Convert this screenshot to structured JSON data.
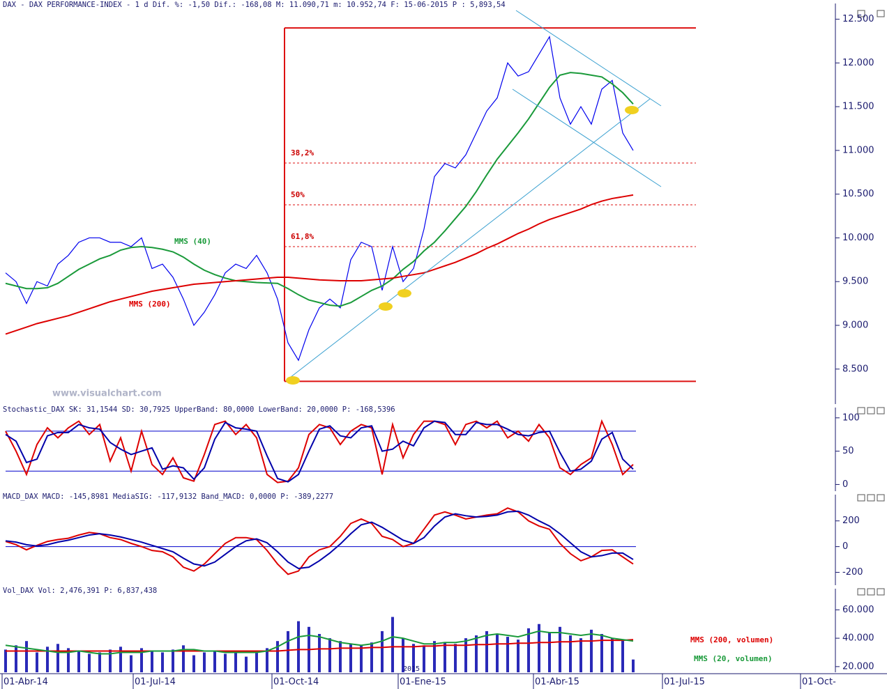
{
  "chart_data": [
    {
      "type": "line",
      "title": "DAX - DAX PERFORMANCE-INDEX -  1 d Dif. %: -1,50 Dif.: -168,08 M: 11.090,71 m: 10.952,74 F: 15-06-2015 P : 5,893,54",
      "watermark": "www.visualchart.com",
      "ylim": [
        8100,
        12600
      ],
      "yticks": [
        {
          "value": 12500,
          "label": "12.500"
        },
        {
          "value": 12000,
          "label": "12.000"
        },
        {
          "value": 11500,
          "label": "11.500"
        },
        {
          "value": 11000,
          "label": "11.000"
        },
        {
          "value": 10500,
          "label": "10.500"
        },
        {
          "value": 10000,
          "label": "10.000"
        },
        {
          "value": 9500,
          "label": "9.500"
        },
        {
          "value": 9000,
          "label": "9.000"
        },
        {
          "value": 8500,
          "label": "8.500"
        }
      ],
      "series": [
        {
          "color": "#0000ee",
          "values": [
            9600,
            9500,
            9250,
            9500,
            9450,
            9700,
            9800,
            9950,
            10000,
            10000,
            9950,
            9950,
            9900,
            10000,
            9650,
            9700,
            9550,
            9300,
            9000,
            9150,
            9350,
            9600,
            9700,
            9650,
            9800,
            9600,
            9300,
            8800,
            8600,
            8950,
            9200,
            9300,
            9200,
            9750,
            9950,
            9900,
            9400,
            9900,
            9500,
            9650,
            10100,
            10700,
            10850,
            10800,
            10950,
            11200,
            11450,
            11600,
            12000,
            11850,
            11900,
            12100,
            12300,
            11600,
            11300,
            11500,
            11300,
            11700,
            11800,
            11200,
            11000
          ]
        },
        {
          "name": "MMS (40)",
          "color": "#1a9a3a",
          "values": [
            9480,
            9450,
            9420,
            9420,
            9430,
            9480,
            9560,
            9640,
            9700,
            9760,
            9800,
            9860,
            9890,
            9900,
            9890,
            9870,
            9840,
            9780,
            9700,
            9630,
            9580,
            9540,
            9510,
            9500,
            9490,
            9485,
            9480,
            9420,
            9350,
            9290,
            9260,
            9230,
            9220,
            9260,
            9330,
            9400,
            9450,
            9530,
            9640,
            9730,
            9850,
            9950,
            10080,
            10220,
            10360,
            10530,
            10720,
            10900,
            11050,
            11200,
            11360,
            11540,
            11720,
            11860,
            11890,
            11880,
            11860,
            11840,
            11760,
            11660,
            11530
          ]
        },
        {
          "name": "MMS (200)",
          "color": "#dd0000",
          "values": [
            8900,
            8940,
            8980,
            9020,
            9050,
            9080,
            9110,
            9150,
            9190,
            9230,
            9270,
            9300,
            9330,
            9360,
            9390,
            9410,
            9430,
            9450,
            9470,
            9480,
            9490,
            9500,
            9510,
            9520,
            9530,
            9540,
            9550,
            9550,
            9540,
            9530,
            9520,
            9515,
            9510,
            9510,
            9510,
            9520,
            9530,
            9540,
            9560,
            9580,
            9600,
            9640,
            9680,
            9720,
            9770,
            9820,
            9880,
            9930,
            9990,
            10050,
            10100,
            10160,
            10210,
            10250,
            10290,
            10330,
            10380,
            10420,
            10450,
            10470,
            10490
          ]
        }
      ],
      "box": {
        "top": 12400,
        "bottom": 8360
      },
      "levels": [
        {
          "label": "38,2%",
          "value": 10856
        },
        {
          "label": "50%",
          "value": 10378
        },
        {
          "label": "61,8%",
          "value": 9900
        }
      ]
    },
    {
      "type": "line",
      "title": "Stochastic_DAX SK: 31,1544 SD: 30,7925 UpperBand: 80,0000 LowerBand: 20,0000 P: -168,5396",
      "ylim": [
        -10,
        105
      ],
      "yticks": [
        100,
        50,
        0
      ],
      "bands": [
        80,
        20
      ],
      "series": [
        {
          "color": "#dd0000",
          "values": [
            80,
            50,
            15,
            60,
            85,
            70,
            85,
            95,
            75,
            90,
            35,
            70,
            20,
            80,
            30,
            15,
            40,
            10,
            5,
            45,
            90,
            95,
            75,
            90,
            70,
            15,
            3,
            5,
            25,
            75,
            90,
            85,
            60,
            80,
            90,
            85,
            15,
            90,
            40,
            75,
            95,
            95,
            90,
            60,
            90,
            95,
            85,
            95,
            70,
            80,
            65,
            90,
            70,
            25,
            15,
            30,
            40,
            95,
            60,
            15,
            30
          ]
        },
        {
          "color": "#0000aa",
          "values": [
            75,
            65,
            33,
            38,
            73,
            78,
            78,
            90,
            85,
            83,
            63,
            53,
            45,
            50,
            55,
            23,
            28,
            25,
            8,
            25,
            68,
            93,
            85,
            83,
            80,
            43,
            9,
            4,
            15,
            50,
            83,
            88,
            73,
            70,
            85,
            88,
            50,
            53,
            65,
            58,
            85,
            95,
            93,
            75,
            75,
            93,
            90,
            90,
            83,
            75,
            73,
            78,
            80,
            48,
            20,
            23,
            35,
            68,
            78,
            38,
            23
          ]
        }
      ]
    },
    {
      "type": "line",
      "title": "MACD_DAX MACD: -145,8981 MediaSIG: -117,9132 Band_MACD: 0,0000 P: -389,2277",
      "ylim": [
        -300,
        350
      ],
      "yticks": [
        200,
        0,
        -200
      ],
      "bands": [
        0
      ],
      "series": [
        {
          "color": "#dd0000",
          "values": [
            40,
            15,
            -25,
            10,
            40,
            55,
            65,
            90,
            110,
            100,
            70,
            55,
            25,
            0,
            -30,
            -40,
            -80,
            -160,
            -190,
            -135,
            -55,
            25,
            70,
            70,
            55,
            -30,
            -135,
            -215,
            -190,
            -80,
            -25,
            0,
            80,
            180,
            215,
            180,
            80,
            55,
            0,
            25,
            135,
            245,
            270,
            245,
            215,
            230,
            245,
            255,
            300,
            270,
            200,
            160,
            135,
            25,
            -55,
            -110,
            -80,
            -30,
            -25,
            -80,
            -135
          ]
        },
        {
          "color": "#0000aa",
          "values": [
            45,
            35,
            15,
            5,
            15,
            35,
            50,
            70,
            90,
            100,
            90,
            75,
            55,
            35,
            10,
            -15,
            -40,
            -90,
            -135,
            -150,
            -120,
            -60,
            0,
            45,
            60,
            30,
            -40,
            -120,
            -170,
            -160,
            -110,
            -50,
            20,
            100,
            170,
            190,
            150,
            100,
            50,
            25,
            70,
            160,
            230,
            255,
            240,
            230,
            235,
            245,
            270,
            275,
            245,
            200,
            160,
            100,
            30,
            -40,
            -80,
            -70,
            -50,
            -50,
            -100
          ]
        }
      ]
    },
    {
      "type": "bar",
      "title": "Vol_DAX Vol: 2,476,391 P: 6,837,438",
      "ylim": [
        16000,
        70000
      ],
      "yticks": [
        {
          "value": 60000,
          "label": "60.000"
        },
        {
          "value": 40000,
          "label": "40.000"
        },
        {
          "value": 20000,
          "label": "20.000"
        }
      ],
      "values": [
        32000,
        35000,
        38000,
        30000,
        34000,
        36000,
        33000,
        31000,
        29000,
        30000,
        32000,
        34000,
        28000,
        33000,
        31000,
        30000,
        32000,
        35000,
        28000,
        30000,
        31000,
        29000,
        30000,
        27000,
        31000,
        33000,
        38000,
        45000,
        52000,
        48000,
        43000,
        40000,
        38000,
        36000,
        35000,
        37000,
        45000,
        55000,
        40000,
        36000,
        35000,
        38000,
        37000,
        36000,
        40000,
        42000,
        45000,
        43000,
        41000,
        39000,
        47000,
        50000,
        44000,
        48000,
        42000,
        40000,
        46000,
        43000,
        40000,
        39000,
        25000
      ],
      "color": "#2a2ab8",
      "series": [
        {
          "name": "MMS (200, volumen)",
          "color": "#dd0000",
          "values": [
            31000,
            31000,
            31000,
            31000,
            31000,
            31000,
            31000,
            31000,
            31000,
            31000,
            31000,
            31000,
            31000,
            31000,
            31000,
            31000,
            31000,
            31000,
            31000,
            31000,
            31000,
            31000,
            31000,
            31000,
            31000,
            31000,
            31000,
            31500,
            32000,
            32000,
            32500,
            32500,
            33000,
            33000,
            33000,
            33500,
            33500,
            34000,
            34000,
            34000,
            34500,
            34500,
            35000,
            35000,
            35000,
            35500,
            35500,
            36000,
            36000,
            36500,
            36500,
            37000,
            37000,
            37500,
            37500,
            38000,
            38000,
            38500,
            38500,
            38500,
            39000
          ]
        },
        {
          "name": "MMS (20, volumen)",
          "color": "#1a9a3a",
          "values": [
            35000,
            34000,
            33000,
            32000,
            31000,
            30000,
            30000,
            31000,
            30000,
            29000,
            29000,
            30000,
            30000,
            30000,
            31000,
            31000,
            31000,
            32000,
            32000,
            31000,
            31000,
            30000,
            30000,
            30000,
            30000,
            31000,
            34000,
            38000,
            41000,
            42000,
            41000,
            39000,
            37000,
            36000,
            35000,
            36000,
            38000,
            41000,
            40000,
            38000,
            36000,
            36000,
            37000,
            37000,
            38000,
            40000,
            42000,
            43000,
            42000,
            41000,
            43000,
            45000,
            44000,
            44000,
            43000,
            42000,
            43000,
            42000,
            40000,
            39000,
            38000
          ]
        }
      ],
      "year_label": "2015",
      "x_axis_labels": [
        "01-Abr-14",
        "01-Jul-14",
        "01-Oct-14",
        "01-Ene-15",
        "01-Abr-15",
        "01-Jul-15",
        "01-Oct-"
      ]
    }
  ]
}
